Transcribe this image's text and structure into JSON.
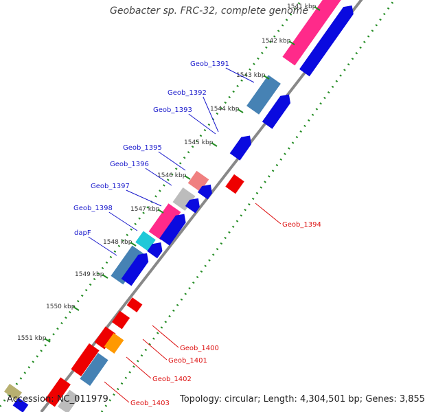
{
  "title": "Geobacter sp. FRC-32, complete genome",
  "footer": {
    "accession": "Accession: NC_011979",
    "summary": "Topology: circular; Length: 4,304,501 bp; Genes: 3,855"
  },
  "ticks": [
    "1541 kbp",
    "1542 kbp",
    "1543 kbp",
    "1544 kbp",
    "1545 kbp",
    "1546 kbp",
    "1547 kbp",
    "1548 kbp",
    "1549 kbp",
    "1550 kbp",
    "1551 kbp"
  ],
  "forward_genes": [
    "Geob_1391",
    "Geob_1392",
    "Geob_1393",
    "Geob_1395",
    "Geob_1396",
    "Geob_1397",
    "Geob_1398",
    "dapF"
  ],
  "reverse_genes": [
    "Geob_1394",
    "Geob_1400",
    "Geob_1401",
    "Geob_1402",
    "Geob_1403"
  ],
  "colors": {
    "forward_label": "#1a1acc",
    "reverse_label": "#dd1111",
    "cds_blue": "#0a0adf",
    "cds_steel": "#4682b4",
    "cds_pink": "#ff2a8a",
    "cds_red": "#ee0000",
    "cds_orange": "#ff9900",
    "cds_cyan": "#20c8d8",
    "cds_grey": "#bcbcbc",
    "cds_salmon": "#f08080",
    "cds_khaki": "#b8b070",
    "backbone": "#888888",
    "gc_dots": "#228b22"
  }
}
